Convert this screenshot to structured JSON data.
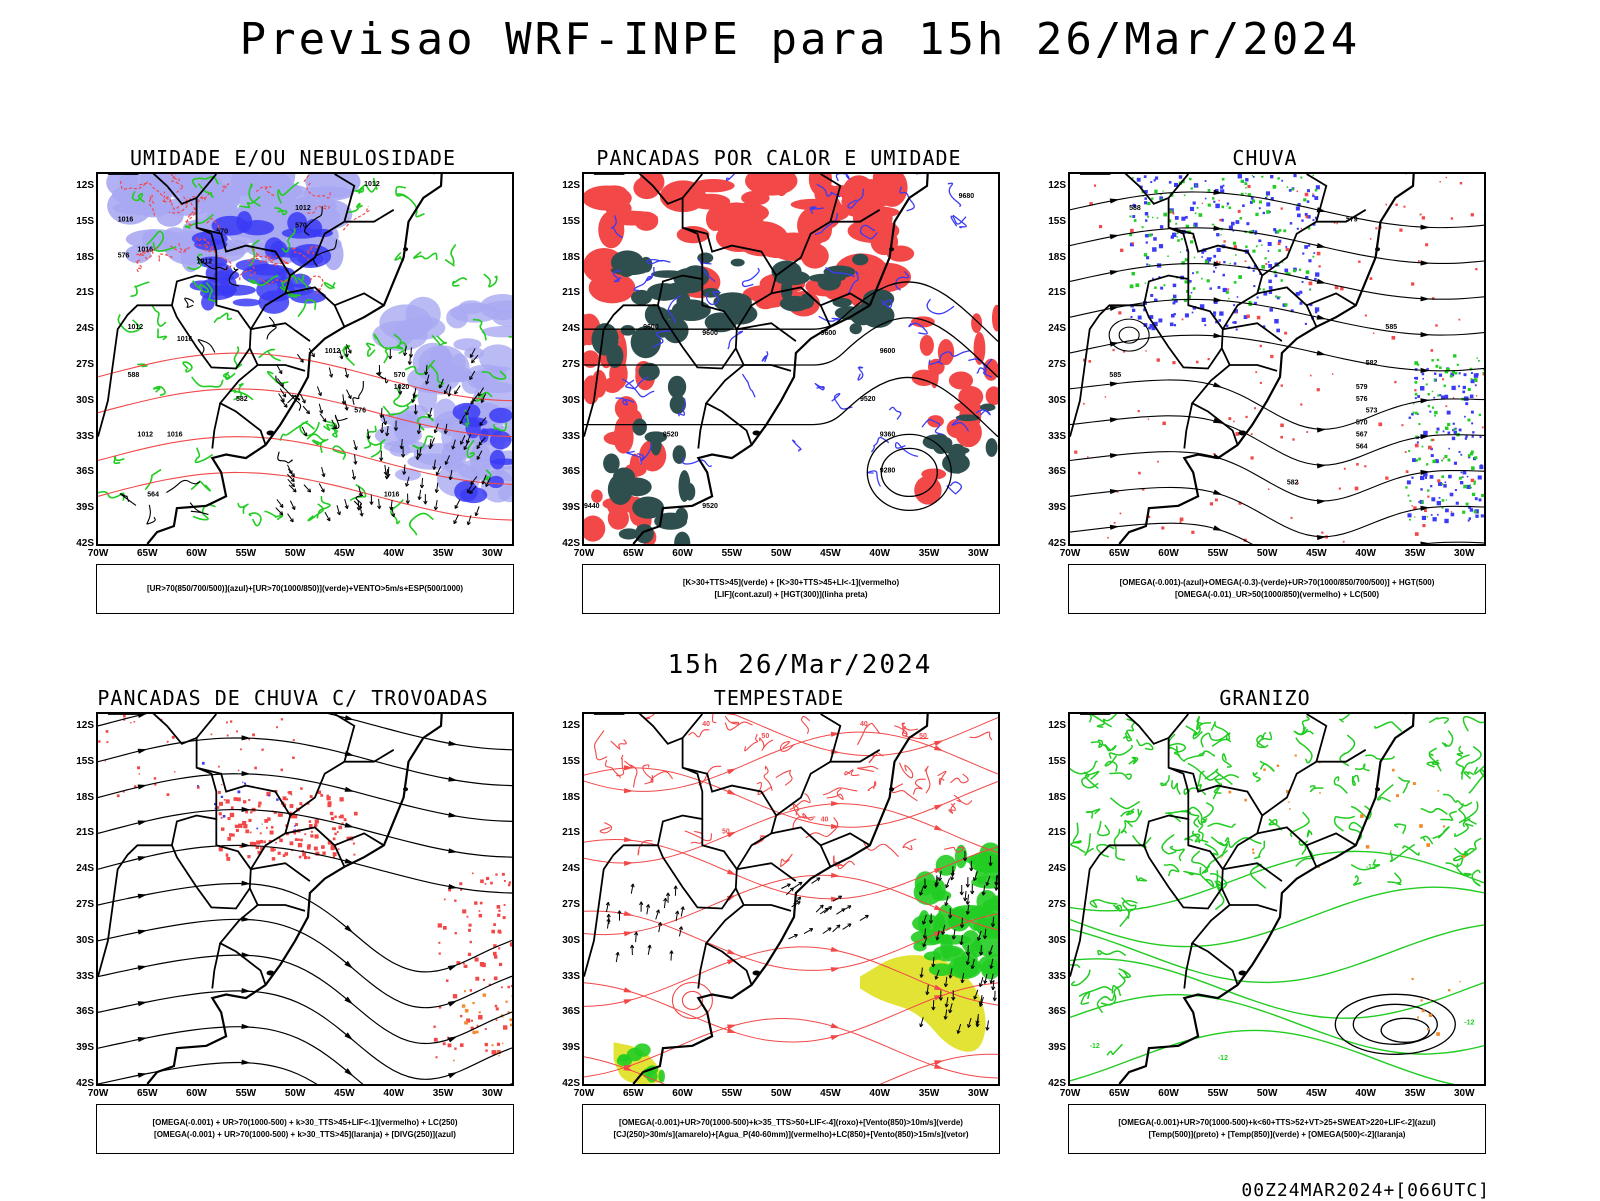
{
  "title": "Previsao WRF-INPE  para 15h 26/Mar/2024",
  "middle_title": "15h 26/Mar/2024",
  "footer": "00Z24MAR2024+[066UTC]",
  "lat_labels": [
    "12S",
    "15S",
    "18S",
    "21S",
    "24S",
    "27S",
    "30S",
    "33S",
    "36S",
    "39S",
    "42S"
  ],
  "lon_labels": [
    "70W",
    "65W",
    "60W",
    "55W",
    "50W",
    "45W",
    "40W",
    "35W",
    "30W"
  ],
  "colors": {
    "blue": "#3b3bf5",
    "light_blue": "#a9a9f3",
    "green": "#22cc22",
    "red": "#f24848",
    "dark_teal": "#2f4f4f",
    "yellow": "#e2e22a",
    "orange": "#f28a2a"
  },
  "panels": [
    {
      "title": "UMIDADE E/OU NEBULOSIDADE",
      "legend": [
        "[UR>70(850/700/500)](azul)+[UR>70(1000/850)](verde)+VENTO>5m/s+ESP(500/1000)"
      ],
      "labels": [
        "1012",
        "1012",
        "1012",
        "1016",
        "1016",
        "1012",
        "1016",
        "1012",
        "1016",
        "1016",
        "1020",
        "1012",
        "576",
        "570",
        "570",
        "588",
        "582",
        "576",
        "570",
        "564"
      ]
    },
    {
      "title": "PANCADAS POR CALOR E UMIDADE",
      "legend": [
        "[K>30+TTS>45](verde) + [K>30+TTS>45+LI<-1](vermelho)",
        "[LIF](cont.azul) + [HGT(300)](linha preta)"
      ],
      "labels": [
        "9680",
        "9600",
        "9600",
        "9600",
        "9520",
        "9360",
        "9280",
        "9600",
        "9520",
        "9440",
        "9520"
      ]
    },
    {
      "title": "CHUVA",
      "legend": [
        "[OMEGA(-0.001)-(azul)+OMEGA(-0.3)-(verde)+UR>70(1000/850/700/500)] + HGT(500)",
        "[OMEGA(-0.01)_UR>50(1000/850)(vermelho) + LC(500)"
      ],
      "labels": [
        "585",
        "582",
        "579",
        "576",
        "573",
        "570",
        "567",
        "564",
        "588",
        "585",
        "582",
        "579"
      ]
    },
    {
      "title": "PANCADAS DE CHUVA C/ TROVOADAS",
      "legend": [
        "[OMEGA(-0.001) + UR>70(1000-500) + k>30_TTS>45+LIF<-1](vermelho) + LC(250)",
        "[OMEGA(-0.001) + UR>70(1000-500) + k>30_TTS>45](laranja) + [DIVG(250)](azul)"
      ],
      "labels": []
    },
    {
      "title": "TEMPESTADE",
      "legend": [
        "[OMEGA(-0.001)+UR>70(1000-500)+k>35_TTS>50+LIF<-4](roxo)+[Vento(850)>10m/s](verde)",
        "[CJ(250)>30m/s](amarelo)+[Agua_P(40-60mm)](vermelho)+LC(850)+[Vento(850)>15m/s](vetor)"
      ],
      "labels": [
        "40",
        "50",
        "40",
        "50",
        "40",
        "50"
      ]
    },
    {
      "title": "GRANIZO",
      "legend": [
        "[OMEGA(-0.001)+UR>70(1000-500)+k<60+TTS>52+VT>25+SWEAT>220+LIF<-2](azul)",
        "[Temp(500)](preto) + [Temp(850)](verde) + [OMEGA(500)<-2](laranja)"
      ],
      "labels": [
        "-12",
        "-12",
        "-12",
        "-12"
      ]
    }
  ]
}
